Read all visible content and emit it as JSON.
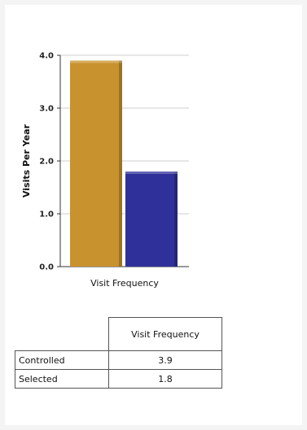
{
  "chart_data": {
    "type": "bar",
    "categories": [
      "Visit Frequency"
    ],
    "series": [
      {
        "name": "Controlled",
        "values": [
          3.9
        ],
        "color": "#c8922e"
      },
      {
        "name": "Selected",
        "values": [
          1.8
        ],
        "color": "#30309a"
      }
    ],
    "xlabel": "Visit Frequency",
    "ylabel": "Visits Per Year",
    "ylim": [
      0,
      4
    ],
    "yticks": [
      "0.0",
      "1.0",
      "2.0",
      "3.0",
      "4.0"
    ],
    "grid": true
  },
  "table": {
    "column_header": "Visit Frequency",
    "rows": [
      {
        "label": "Controlled",
        "value": "3.9"
      },
      {
        "label": "Selected",
        "value": "1.8"
      }
    ]
  }
}
